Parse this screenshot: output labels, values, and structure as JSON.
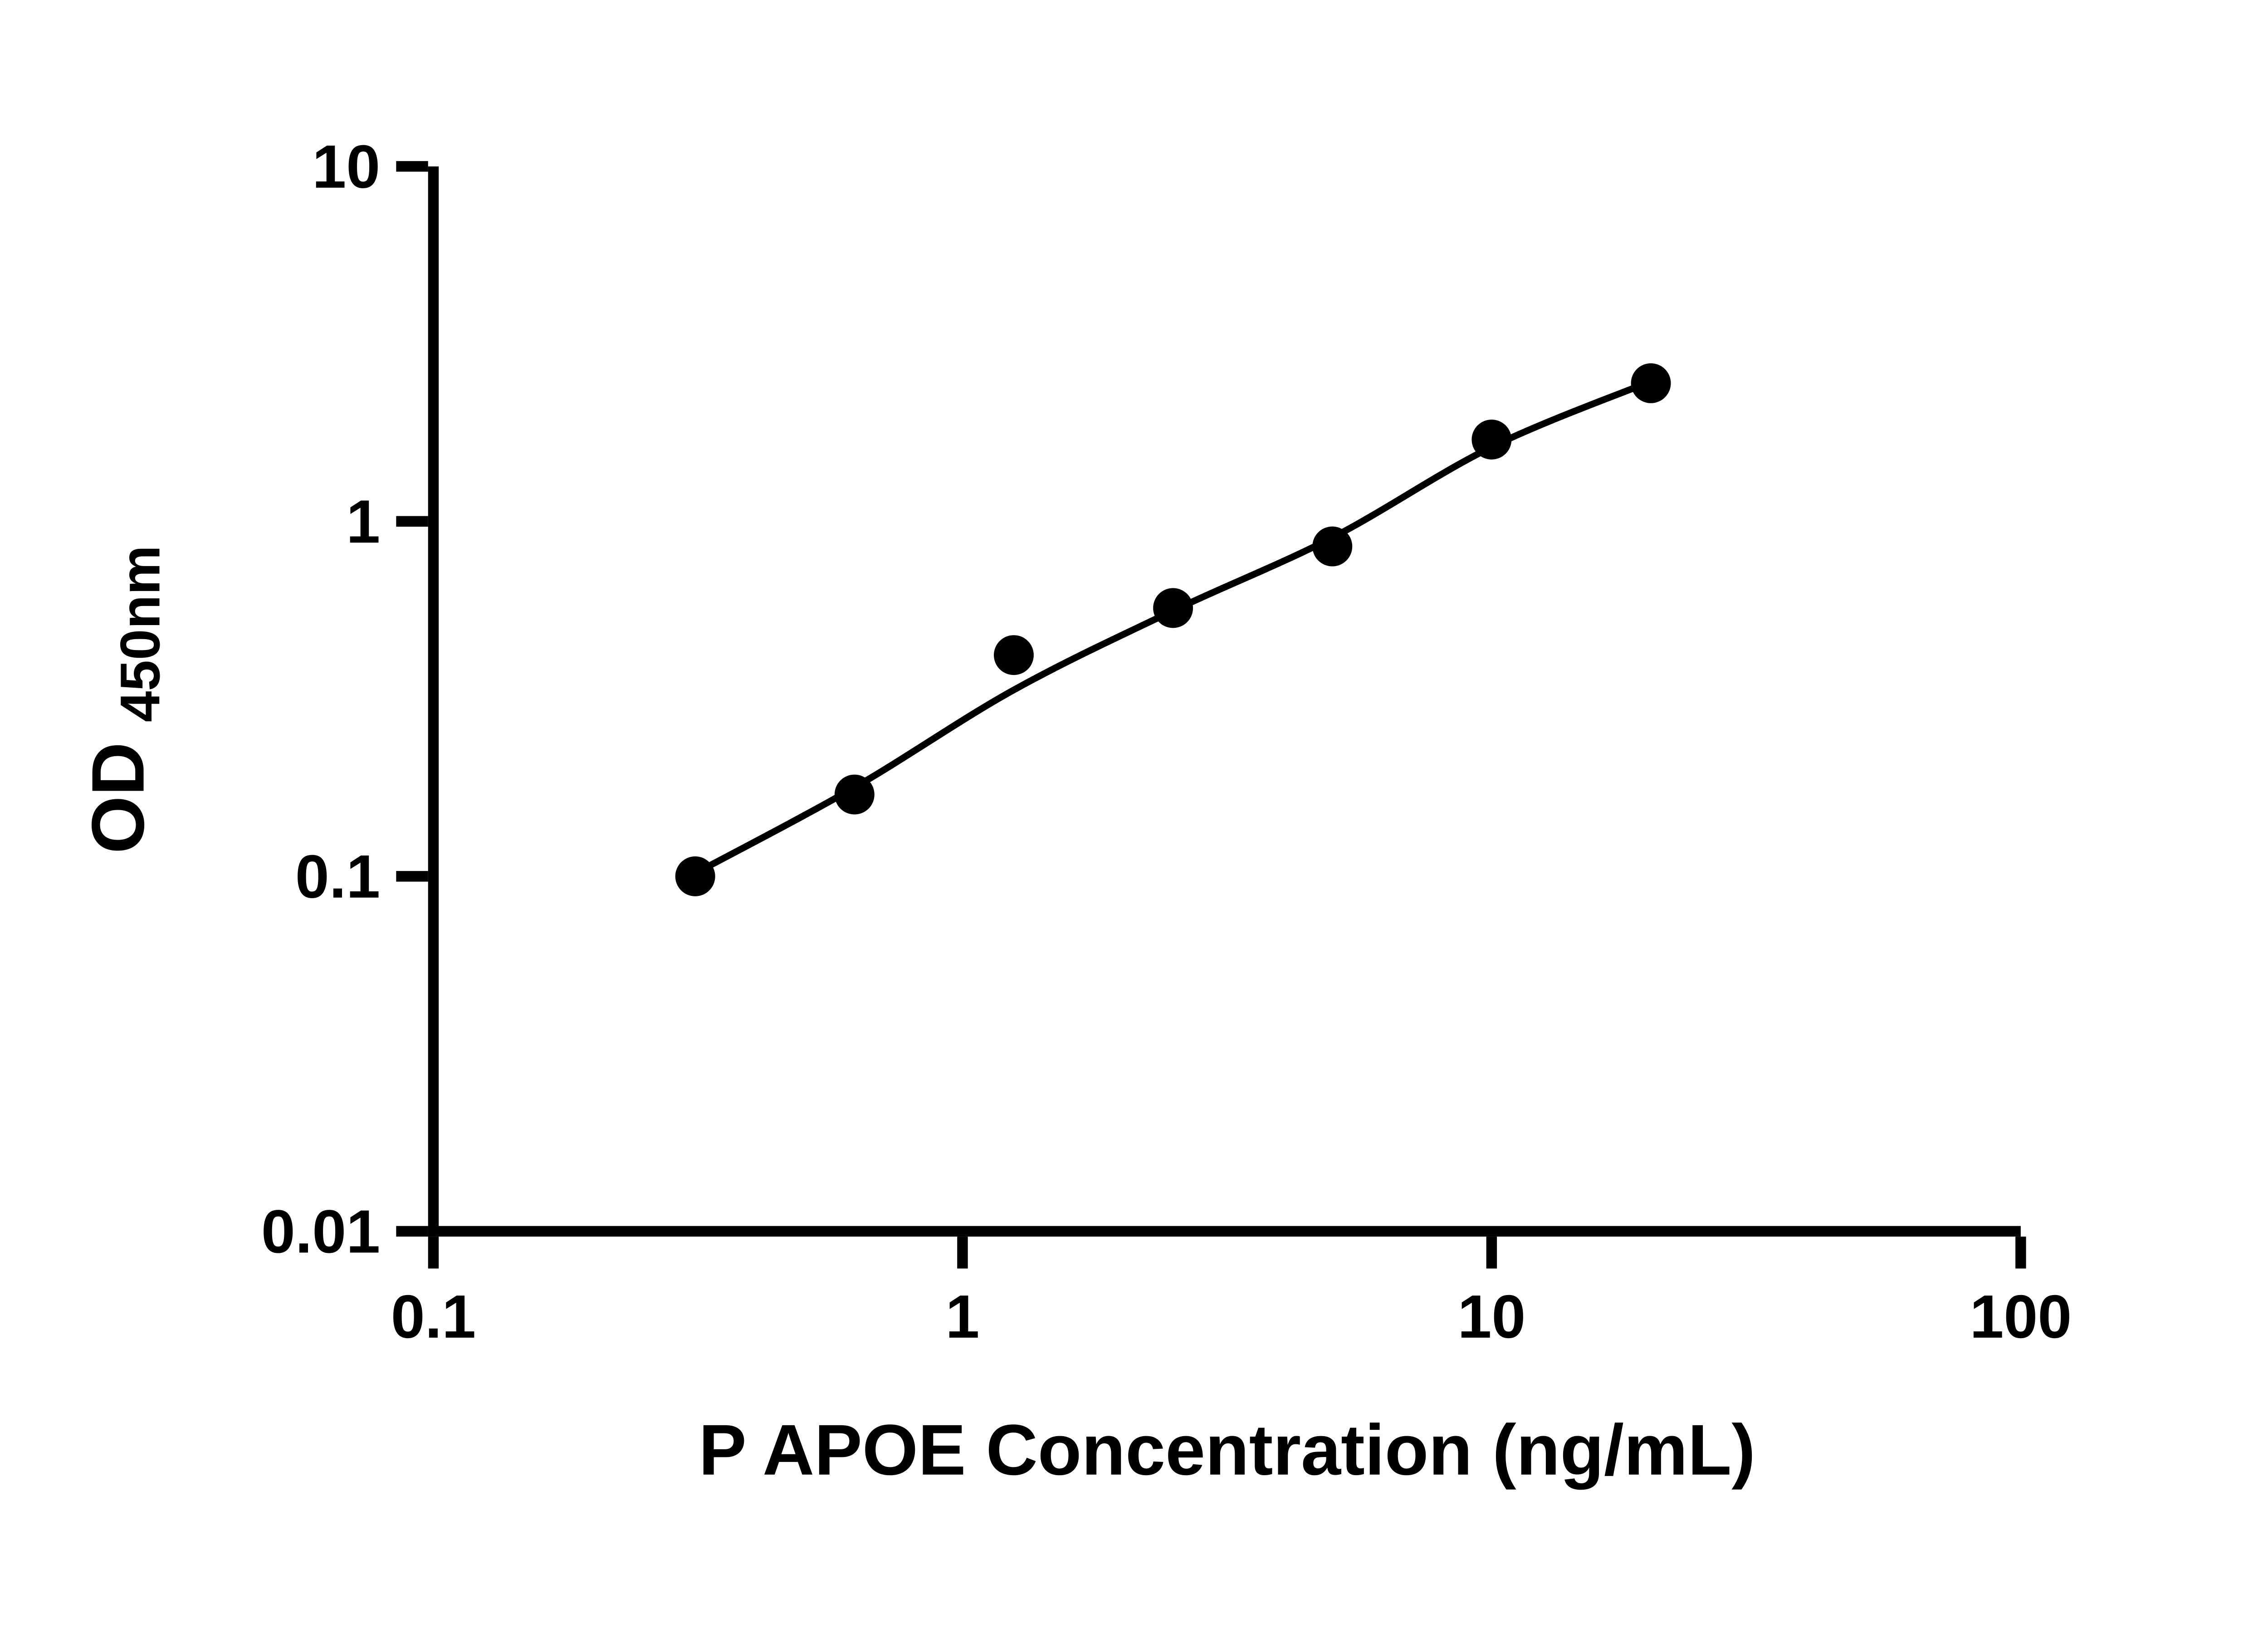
{
  "chart_data": {
    "type": "scatter",
    "title": "",
    "xlabel": "P APOE Concentration (ng/mL)",
    "ylabel_main": "OD",
    "ylabel_sub": "450nm",
    "x_scale": "log10",
    "y_scale": "log10",
    "xlim": [
      0.1,
      100
    ],
    "ylim": [
      0.01,
      10
    ],
    "grid": false,
    "legend": "none",
    "axis_color": "#000000",
    "marker_color": "#000000",
    "line_color": "#000000",
    "x_ticks": [
      {
        "value": 0.1,
        "label": "0.1"
      },
      {
        "value": 1,
        "label": "1"
      },
      {
        "value": 10,
        "label": "10"
      },
      {
        "value": 100,
        "label": "100"
      }
    ],
    "y_ticks": [
      {
        "value": 0.01,
        "label": "0.01"
      },
      {
        "value": 0.1,
        "label": "0.1"
      },
      {
        "value": 1,
        "label": "1"
      },
      {
        "value": 10,
        "label": "10"
      }
    ],
    "series": [
      {
        "name": "standards",
        "marker": "circle",
        "points": [
          {
            "x": 0.3125,
            "y": 0.1
          },
          {
            "x": 0.625,
            "y": 0.17
          },
          {
            "x": 1.25,
            "y": 0.42
          },
          {
            "x": 2.5,
            "y": 0.57
          },
          {
            "x": 5,
            "y": 0.85
          },
          {
            "x": 10,
            "y": 1.7
          },
          {
            "x": 20,
            "y": 2.45
          }
        ]
      }
    ],
    "fit_curve": {
      "name": "fitted-standard-curve",
      "points": [
        {
          "x": 0.3125,
          "y": 0.102
        },
        {
          "x": 0.625,
          "y": 0.178
        },
        {
          "x": 1.25,
          "y": 0.335
        },
        {
          "x": 2.5,
          "y": 0.56
        },
        {
          "x": 5,
          "y": 0.9
        },
        {
          "x": 10,
          "y": 1.62
        },
        {
          "x": 20,
          "y": 2.48
        }
      ]
    }
  }
}
